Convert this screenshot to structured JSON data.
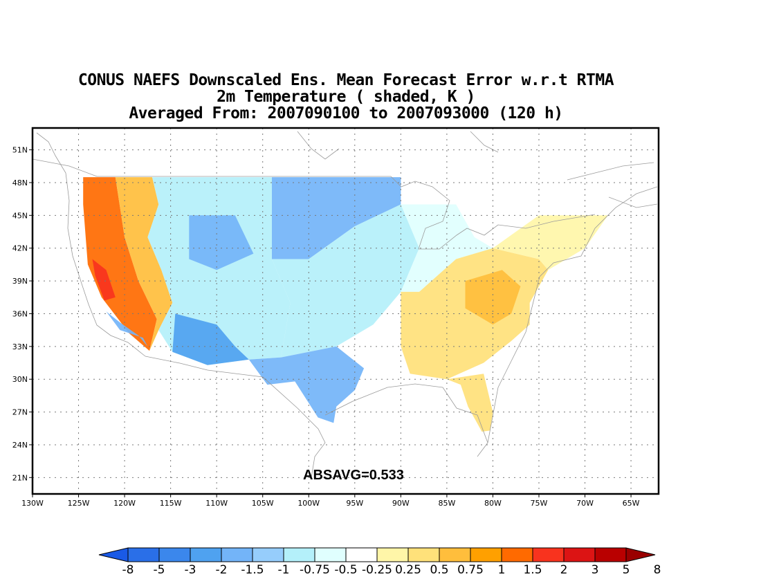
{
  "title": {
    "line1": "CONUS NAEFS Downscaled Ens. Mean Forecast Error w.r.t RTMA",
    "line2": "2m Temperature ( shaded, K )",
    "line3": "Averaged From: 2007090100 to 2007093000 (120 h)"
  },
  "stat_label": "ABSAVG=0.533",
  "map": {
    "lon_range": [
      -130,
      -62
    ],
    "lat_range": [
      19.5,
      53
    ],
    "lon_ticks": [
      {
        "value": -130,
        "label": "130W"
      },
      {
        "value": -125,
        "label": "125W"
      },
      {
        "value": -120,
        "label": "120W"
      },
      {
        "value": -115,
        "label": "115W"
      },
      {
        "value": -110,
        "label": "110W"
      },
      {
        "value": -105,
        "label": "105W"
      },
      {
        "value": -100,
        "label": "100W"
      },
      {
        "value": -95,
        "label": "95W"
      },
      {
        "value": -90,
        "label": "90W"
      },
      {
        "value": -85,
        "label": "85W"
      },
      {
        "value": -80,
        "label": "80W"
      },
      {
        "value": -75,
        "label": "75W"
      },
      {
        "value": -70,
        "label": "70W"
      },
      {
        "value": -65,
        "label": "65W"
      }
    ],
    "lat_ticks": [
      {
        "value": 51,
        "label": "51N"
      },
      {
        "value": 48,
        "label": "48N"
      },
      {
        "value": 45,
        "label": "45N"
      },
      {
        "value": 42,
        "label": "42N"
      },
      {
        "value": 39,
        "label": "39N"
      },
      {
        "value": 36,
        "label": "36N"
      },
      {
        "value": 33,
        "label": "33N"
      },
      {
        "value": 30,
        "label": "30N"
      },
      {
        "value": 27,
        "label": "27N"
      },
      {
        "value": 24,
        "label": "24N"
      },
      {
        "value": 21,
        "label": "21N"
      }
    ],
    "grid": true,
    "regions": [
      {
        "name": "pacific-coast",
        "value": 1.5,
        "color": "#ff6a00",
        "polygon": [
          [
            -124.5,
            48.5
          ],
          [
            -121,
            48.5
          ],
          [
            -120,
            43
          ],
          [
            -118.5,
            39
          ],
          [
            -116.5,
            35.5
          ],
          [
            -117.3,
            32.6
          ],
          [
            -119.5,
            34.2
          ],
          [
            -122.5,
            37.5
          ],
          [
            -124,
            40.5
          ],
          [
            -124.5,
            46
          ]
        ]
      },
      {
        "name": "pacific-core",
        "value": 3,
        "color": "#f8331e",
        "polygon": [
          [
            -123.5,
            41
          ],
          [
            -122,
            40
          ],
          [
            -121,
            37.5
          ],
          [
            -122.2,
            37.2
          ],
          [
            -123.2,
            39.5
          ]
        ]
      },
      {
        "name": "pacific-margin",
        "value": 0.75,
        "color": "#ffbe3c",
        "polygon": [
          [
            -121,
            48.5
          ],
          [
            -117,
            48.5
          ],
          [
            -116.3,
            46
          ],
          [
            -117.5,
            43
          ],
          [
            -116,
            40
          ],
          [
            -114.8,
            37
          ],
          [
            -116.3,
            34.5
          ],
          [
            -117.3,
            32.6
          ],
          [
            -116.5,
            35.5
          ],
          [
            -118.5,
            39
          ],
          [
            -120,
            43
          ]
        ]
      },
      {
        "name": "socal-coast",
        "value": -1,
        "color": "#73b4f8",
        "polygon": [
          [
            -122,
            36.2
          ],
          [
            -120.5,
            34.5
          ],
          [
            -118,
            33.8
          ],
          [
            -117.5,
            33
          ],
          [
            -118.5,
            34
          ],
          [
            -120.5,
            35.2
          ]
        ]
      },
      {
        "name": "interior-west",
        "value": -0.5,
        "color": "#b4f0fa",
        "polygon": [
          [
            -117,
            48.5
          ],
          [
            -104,
            48.5
          ],
          [
            -104,
            41
          ],
          [
            -102,
            37
          ],
          [
            -103,
            32
          ],
          [
            -106.5,
            31.8
          ],
          [
            -111,
            31.3
          ],
          [
            -114.8,
            32.5
          ],
          [
            -116.3,
            34.5
          ],
          [
            -114.8,
            37
          ],
          [
            -116,
            40
          ],
          [
            -117.5,
            43
          ],
          [
            -116.3,
            46
          ]
        ]
      },
      {
        "name": "southwest-cool",
        "value": -2,
        "color": "#4fa2f0",
        "polygon": [
          [
            -114.5,
            36
          ],
          [
            -110,
            35
          ],
          [
            -108,
            33
          ],
          [
            -106.5,
            31.8
          ],
          [
            -111,
            31.3
          ],
          [
            -114.8,
            32.5
          ]
        ]
      },
      {
        "name": "northern-plains",
        "value": -1,
        "color": "#73b4f8",
        "polygon": [
          [
            -104,
            48.5
          ],
          [
            -90,
            48.5
          ],
          [
            -90,
            46
          ],
          [
            -95,
            44
          ],
          [
            -100,
            41
          ],
          [
            -104,
            41
          ]
        ]
      },
      {
        "name": "great-basin-cool",
        "value": -1,
        "color": "#73b4f8",
        "polygon": [
          [
            -113,
            45
          ],
          [
            -108,
            45
          ],
          [
            -106,
            41.5
          ],
          [
            -110,
            40
          ],
          [
            -113,
            41
          ]
        ]
      },
      {
        "name": "central-plains",
        "value": -0.5,
        "color": "#b4f0fa",
        "polygon": [
          [
            -104,
            41
          ],
          [
            -100,
            41
          ],
          [
            -95,
            44
          ],
          [
            -90,
            46
          ],
          [
            -88,
            42
          ],
          [
            -90,
            38
          ],
          [
            -93,
            35
          ],
          [
            -97,
            33
          ],
          [
            -103,
            32
          ],
          [
            -102,
            37
          ]
        ]
      },
      {
        "name": "texas-cool",
        "value": -1.5,
        "color": "#73b4f8",
        "polygon": [
          [
            -103,
            32
          ],
          [
            -97,
            33
          ],
          [
            -94,
            31
          ],
          [
            -95,
            29
          ],
          [
            -97,
            27.5
          ],
          [
            -97.3,
            26
          ],
          [
            -99,
            26.5
          ],
          [
            -101.5,
            29.8
          ],
          [
            -104.5,
            29.5
          ],
          [
            -106.5,
            31.8
          ]
        ]
      },
      {
        "name": "midwest-neutral",
        "value": -0.25,
        "color": "#e0fffe",
        "polygon": [
          [
            -90,
            46
          ],
          [
            -84,
            46
          ],
          [
            -82,
            43
          ],
          [
            -80,
            42
          ],
          [
            -84,
            41
          ],
          [
            -88,
            38
          ],
          [
            -90,
            38
          ],
          [
            -88,
            42
          ]
        ]
      },
      {
        "name": "east-warm",
        "value": 0.5,
        "color": "#ffe17a",
        "polygon": [
          [
            -88,
            38
          ],
          [
            -84,
            41
          ],
          [
            -80,
            42
          ],
          [
            -75,
            41
          ],
          [
            -74,
            40
          ],
          [
            -76,
            37
          ],
          [
            -76,
            35
          ],
          [
            -78,
            33.5
          ],
          [
            -81,
            31.5
          ],
          [
            -85,
            30
          ],
          [
            -89,
            30.5
          ],
          [
            -90,
            33
          ],
          [
            -90,
            38
          ]
        ]
      },
      {
        "name": "appalachian-warm",
        "value": 0.75,
        "color": "#ffbe3c",
        "polygon": [
          [
            -83,
            39
          ],
          [
            -79,
            40
          ],
          [
            -77,
            38.5
          ],
          [
            -78,
            36
          ],
          [
            -80,
            35
          ],
          [
            -83,
            36.5
          ]
        ]
      },
      {
        "name": "florida",
        "value": 0.5,
        "color": "#ffe17a",
        "polygon": [
          [
            -85,
            30
          ],
          [
            -81,
            30.5
          ],
          [
            -80,
            27
          ],
          [
            -80.3,
            25.3
          ],
          [
            -81.2,
            25.2
          ],
          [
            -82.7,
            27.5
          ],
          [
            -83.5,
            29.5
          ]
        ]
      },
      {
        "name": "northeast",
        "value": 0.25,
        "color": "#fff6a8",
        "polygon": [
          [
            -80,
            42
          ],
          [
            -75,
            45
          ],
          [
            -71,
            45
          ],
          [
            -67.5,
            45
          ],
          [
            -70,
            42
          ],
          [
            -74,
            40
          ],
          [
            -75,
            41
          ]
        ]
      }
    ]
  },
  "colorbar": {
    "colors": [
      "#1a5ae6",
      "#2a6fe8",
      "#3b87ec",
      "#4fa2f0",
      "#73b4f8",
      "#96cdfc",
      "#b4f0fa",
      "#e0fffe",
      "#ffffff",
      "#fff6a8",
      "#ffe17a",
      "#ffbe3c",
      "#ffa000",
      "#ff6a00",
      "#f8331e",
      "#dc1414",
      "#b90000",
      "#9a0000"
    ],
    "labels": [
      "-8",
      "-5",
      "-3",
      "-2",
      "-1.5",
      "-1",
      "-0.75",
      "-0.5",
      "-0.25",
      "0.25",
      "0.5",
      "0.75",
      "1",
      "1.5",
      "2",
      "3",
      "5",
      "8"
    ]
  }
}
